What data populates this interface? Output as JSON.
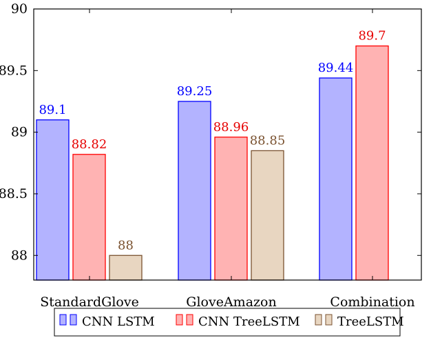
{
  "chart_data": {
    "type": "bar",
    "categories": [
      "StandardGlove",
      "GloveAmazon",
      "Combination"
    ],
    "series": [
      {
        "name": "CNN LSTM",
        "values": [
          89.1,
          89.25,
          89.44
        ],
        "labels": [
          "89.1",
          "89.25",
          "89.44"
        ],
        "fill": "#b3b3ff",
        "stroke": "#0000ff",
        "label_color": "#0000ff"
      },
      {
        "name": "CNN TreeLSTM",
        "values": [
          88.82,
          88.96,
          89.7
        ],
        "labels": [
          "88.82",
          "88.96",
          "89.7"
        ],
        "fill": "#ffb3b3",
        "stroke": "#ff0000",
        "label_color": "#e60000"
      },
      {
        "name": "TreeLSTM",
        "values": [
          88.0,
          88.85,
          null
        ],
        "labels": [
          "88",
          "88.85",
          ""
        ],
        "fill": "#e8d6c1",
        "stroke": "#7a5230",
        "label_color": "#7a5230"
      }
    ],
    "ylim": [
      87.8,
      90
    ],
    "yticks": [
      88,
      88.5,
      89,
      89.5,
      90
    ],
    "ytick_labels": [
      "88",
      "88.5",
      "89",
      "89.5",
      "90"
    ],
    "xlabel": "",
    "ylabel": "",
    "title": "",
    "legend_position": "bottom",
    "grid": false
  }
}
